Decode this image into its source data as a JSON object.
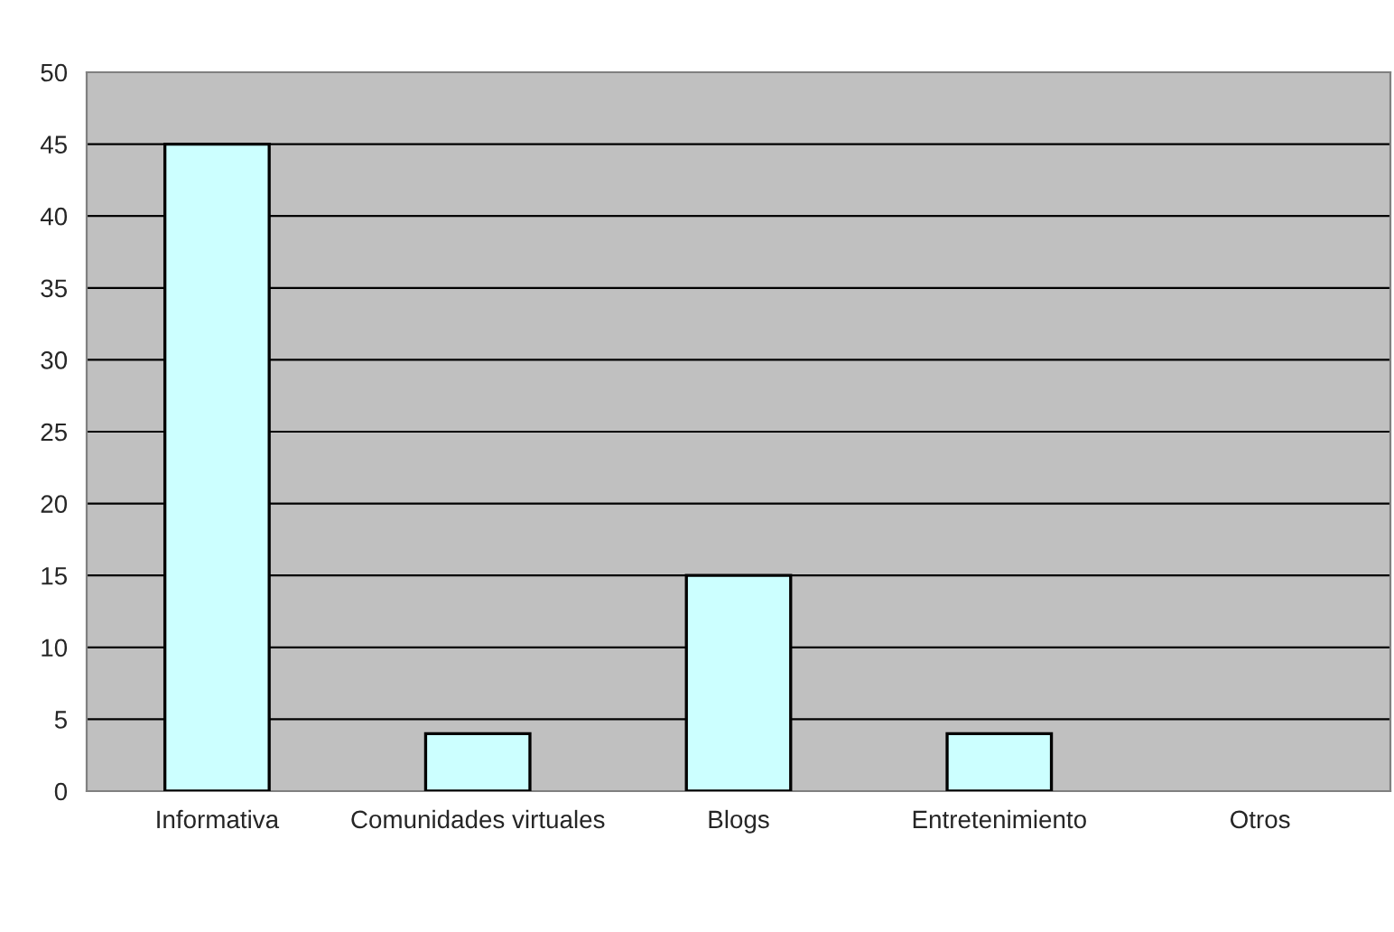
{
  "chart_data": {
    "type": "bar",
    "categories": [
      "Informativa",
      "Comunidades virtuales",
      "Blogs",
      "Entretenimiento",
      "Otros"
    ],
    "values": [
      45,
      4,
      15,
      4,
      0
    ],
    "color": "#ccffff",
    "ylim": [
      0,
      50
    ],
    "yticks": [
      0,
      5,
      10,
      15,
      20,
      25,
      30,
      35,
      40,
      45,
      50
    ],
    "grid": "y",
    "legend": false
  }
}
